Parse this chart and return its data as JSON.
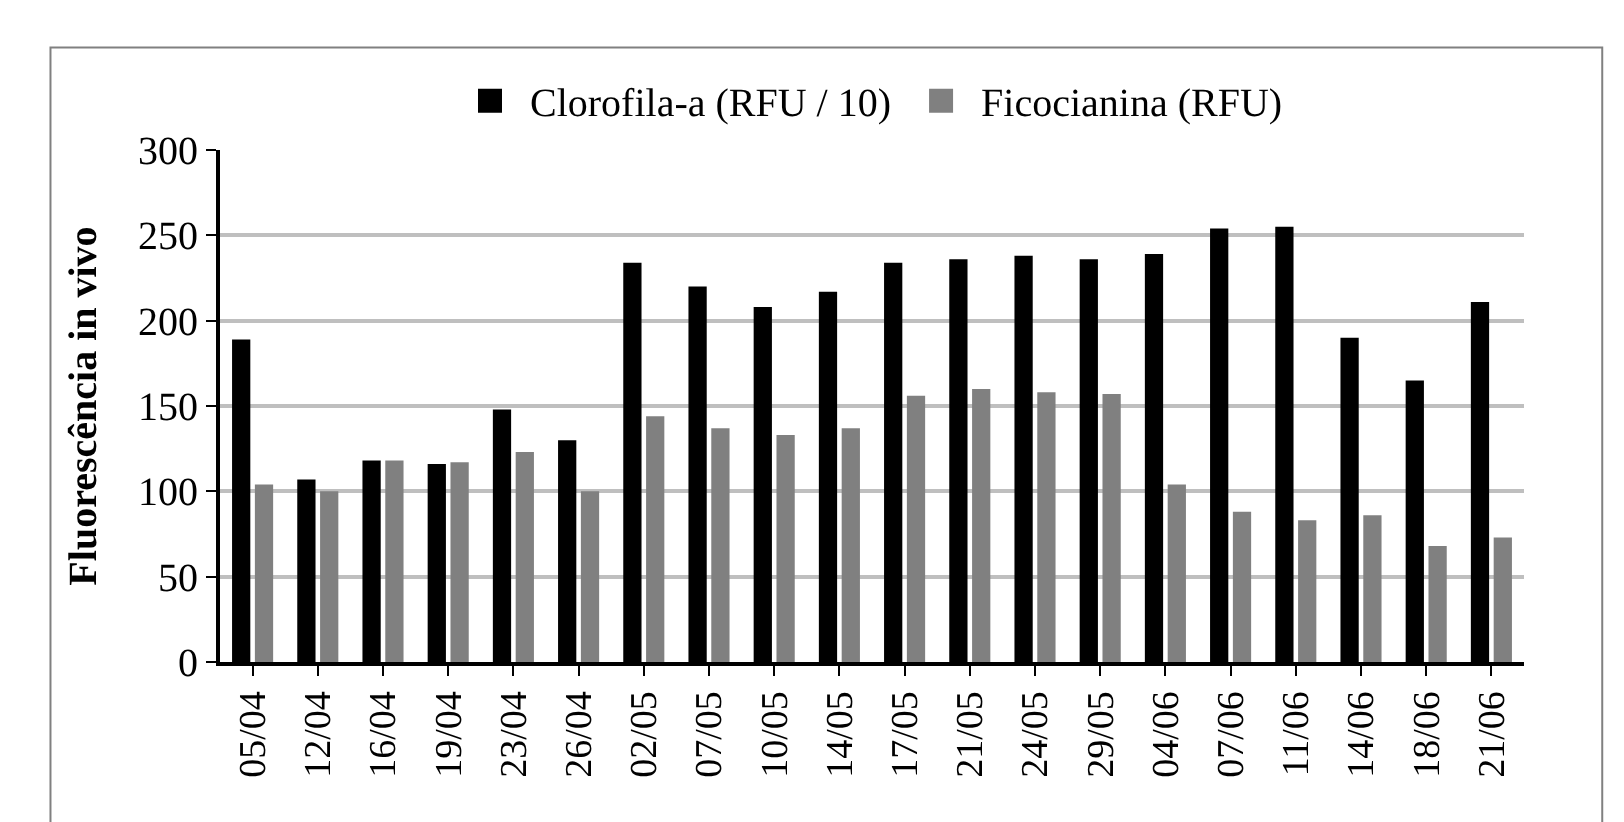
{
  "chart_data": {
    "type": "bar",
    "ylabel": "Fluorescência in vivo",
    "categories": [
      "05/04",
      "12/04",
      "16/04",
      "19/04",
      "23/04",
      "26/04",
      "02/05",
      "07/05",
      "10/05",
      "14/05",
      "17/05",
      "21/05",
      "24/05",
      "29/05",
      "04/06",
      "07/06",
      "11/06",
      "14/06",
      "18/06",
      "21/06"
    ],
    "series": [
      {
        "name": "Clorofila-a (RFU / 10)",
        "color": "#000000",
        "values": [
          189,
          107,
          118,
          116,
          148,
          130,
          234,
          220,
          208,
          217,
          234,
          236,
          238,
          236,
          239,
          254,
          255,
          190,
          165,
          211
        ]
      },
      {
        "name": "Ficocianina (RFU)",
        "color": "#808080",
        "values": [
          104,
          100,
          118,
          117,
          123,
          100,
          144,
          137,
          133,
          137,
          156,
          160,
          158,
          157,
          104,
          88,
          83,
          86,
          68,
          73
        ]
      }
    ],
    "ylim": [
      0,
      300
    ],
    "yticks": [
      0,
      50,
      100,
      150,
      200,
      250,
      300
    ],
    "grid": "y",
    "legend": "top"
  }
}
